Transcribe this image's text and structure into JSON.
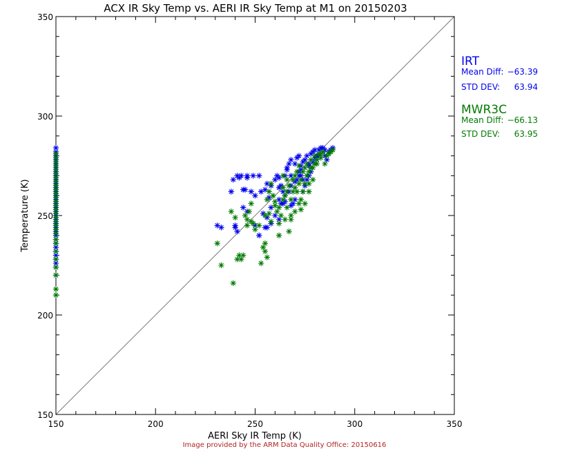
{
  "chart_data": {
    "type": "scatter",
    "title": "ACX IR Sky Temp vs. AERI IR Sky Temp at M1 on 20150203",
    "xlabel": "AERI Sky IR Temp (K)",
    "ylabel": "Temperature (K)",
    "xlim": [
      150,
      350
    ],
    "ylim": [
      150,
      350
    ],
    "xticks": [
      150,
      200,
      250,
      300,
      350
    ],
    "yticks": [
      150,
      200,
      250,
      300,
      350
    ],
    "reference_line": "y = x",
    "grid": false,
    "marker": "asterisk",
    "legend_position": "right",
    "series": [
      {
        "name": "IRT",
        "color": "#0000ee",
        "mean_diff_label": "Mean Diff:",
        "mean_diff": "−63.39",
        "std_dev_label": "STD DEV:",
        "std_dev": "63.94",
        "points": [
          [
            231,
            245
          ],
          [
            233,
            244
          ],
          [
            240,
            244
          ],
          [
            241,
            242
          ],
          [
            241,
            270
          ],
          [
            243,
            270
          ],
          [
            246,
            270
          ],
          [
            249,
            270
          ],
          [
            252,
            270
          ],
          [
            239,
            268
          ],
          [
            242,
            269
          ],
          [
            244,
            263
          ],
          [
            248,
            262
          ],
          [
            250,
            260
          ],
          [
            253,
            262
          ],
          [
            256,
            266
          ],
          [
            254,
            251
          ],
          [
            255,
            244
          ],
          [
            256,
            244
          ],
          [
            256,
            249
          ],
          [
            258,
            265
          ],
          [
            260,
            268
          ],
          [
            261,
            270
          ],
          [
            262,
            269
          ],
          [
            263,
            265
          ],
          [
            264,
            262
          ],
          [
            265,
            260
          ],
          [
            265,
            270
          ],
          [
            266,
            273
          ],
          [
            262,
            258
          ],
          [
            263,
            256
          ],
          [
            264,
            256
          ],
          [
            260,
            250
          ],
          [
            262,
            248
          ],
          [
            258,
            246
          ],
          [
            266,
            262
          ],
          [
            266,
            274
          ],
          [
            267,
            276
          ],
          [
            268,
            278
          ],
          [
            268,
            270
          ],
          [
            268,
            265
          ],
          [
            268,
            255
          ],
          [
            269,
            256
          ],
          [
            270,
            258
          ],
          [
            270,
            276
          ],
          [
            271,
            279
          ],
          [
            272,
            272
          ],
          [
            272,
            280
          ],
          [
            273,
            270
          ],
          [
            273,
            275
          ],
          [
            274,
            277
          ],
          [
            274,
            268
          ],
          [
            274,
            262
          ],
          [
            275,
            278
          ],
          [
            276,
            280
          ],
          [
            276,
            270
          ],
          [
            277,
            276
          ],
          [
            277,
            275
          ],
          [
            278,
            281
          ],
          [
            278,
            272
          ],
          [
            279,
            282
          ],
          [
            280,
            276
          ],
          [
            280,
            283
          ],
          [
            281,
            278
          ],
          [
            282,
            283
          ],
          [
            282,
            280
          ],
          [
            283,
            284
          ],
          [
            284,
            282
          ],
          [
            284,
            284
          ],
          [
            285,
            283
          ],
          [
            285,
            280
          ],
          [
            286,
            278
          ],
          [
            287,
            282
          ],
          [
            288,
            283
          ],
          [
            289,
            284
          ],
          [
            275,
            265
          ],
          [
            276,
            268
          ],
          [
            277,
            270
          ],
          [
            278,
            274
          ],
          [
            279,
            277
          ],
          [
            280,
            279
          ],
          [
            281,
            280
          ],
          [
            270,
            267
          ],
          [
            271,
            268
          ],
          [
            272,
            270
          ],
          [
            273,
            273
          ],
          [
            265,
            257
          ],
          [
            267,
            262
          ],
          [
            246,
            269
          ],
          [
            245,
            263
          ],
          [
            255,
            263
          ],
          [
            257,
            259
          ],
          [
            262,
            264
          ],
          [
            258,
            254
          ],
          [
            244,
            254
          ],
          [
            246,
            252
          ],
          [
            250,
            245
          ],
          [
            252,
            240
          ],
          [
            240,
            245
          ],
          [
            238,
            262
          ],
          [
            150,
            284
          ],
          [
            150,
            282
          ],
          [
            150,
            280
          ],
          [
            150,
            278
          ],
          [
            150,
            276
          ],
          [
            150,
            274
          ],
          [
            150,
            272
          ],
          [
            150,
            270
          ],
          [
            150,
            268
          ],
          [
            150,
            266
          ],
          [
            150,
            264
          ],
          [
            150,
            262
          ],
          [
            150,
            260
          ],
          [
            150,
            258
          ],
          [
            150,
            256
          ],
          [
            150,
            254
          ],
          [
            150,
            252
          ],
          [
            150,
            250
          ],
          [
            150,
            248
          ],
          [
            150,
            246
          ],
          [
            150,
            244
          ],
          [
            150,
            242
          ],
          [
            150,
            240
          ],
          [
            150,
            238
          ],
          [
            150,
            236
          ],
          [
            150,
            234
          ],
          [
            150,
            232
          ],
          [
            150,
            230
          ],
          [
            150,
            228
          ],
          [
            150,
            226
          ],
          [
            150,
            224
          ],
          [
            150,
            220
          ]
        ]
      },
      {
        "name": "MWR3C",
        "color": "#007a00",
        "mean_diff_label": "Mean Diff:",
        "mean_diff": "−66.13",
        "std_dev_label": "STD DEV:",
        "std_dev": "63.95",
        "points": [
          [
            239,
            216
          ],
          [
            241,
            228
          ],
          [
            242,
            230
          ],
          [
            243,
            228
          ],
          [
            244,
            230
          ],
          [
            233,
            225
          ],
          [
            231,
            236
          ],
          [
            238,
            252
          ],
          [
            240,
            249
          ],
          [
            245,
            250
          ],
          [
            246,
            248
          ],
          [
            247,
            252
          ],
          [
            248,
            256
          ],
          [
            249,
            246
          ],
          [
            250,
            243
          ],
          [
            253,
            226
          ],
          [
            254,
            234
          ],
          [
            255,
            232
          ],
          [
            255,
            236
          ],
          [
            256,
            229
          ],
          [
            256,
            258
          ],
          [
            257,
            262
          ],
          [
            258,
            266
          ],
          [
            259,
            260
          ],
          [
            260,
            255
          ],
          [
            261,
            252
          ],
          [
            262,
            240
          ],
          [
            262,
            246
          ],
          [
            263,
            250
          ],
          [
            264,
            258
          ],
          [
            264,
            264
          ],
          [
            265,
            260
          ],
          [
            266,
            254
          ],
          [
            266,
            262
          ],
          [
            267,
            265
          ],
          [
            267,
            242
          ],
          [
            268,
            248
          ],
          [
            268,
            258
          ],
          [
            269,
            262
          ],
          [
            269,
            268
          ],
          [
            270,
            264
          ],
          [
            270,
            270
          ],
          [
            271,
            262
          ],
          [
            271,
            272
          ],
          [
            272,
            266
          ],
          [
            272,
            275
          ],
          [
            273,
            268
          ],
          [
            273,
            258
          ],
          [
            274,
            262
          ],
          [
            274,
            272
          ],
          [
            275,
            266
          ],
          [
            275,
            274
          ],
          [
            276,
            270
          ],
          [
            276,
            276
          ],
          [
            277,
            272
          ],
          [
            277,
            262
          ],
          [
            278,
            274
          ],
          [
            278,
            278
          ],
          [
            279,
            268
          ],
          [
            280,
            276
          ],
          [
            280,
            280
          ],
          [
            281,
            278
          ],
          [
            282,
            281
          ],
          [
            283,
            279
          ],
          [
            284,
            282
          ],
          [
            285,
            276
          ],
          [
            286,
            280
          ],
          [
            287,
            281
          ],
          [
            288,
            282
          ],
          [
            289,
            283
          ],
          [
            270,
            252
          ],
          [
            272,
            256
          ],
          [
            273,
            253
          ],
          [
            268,
            250
          ],
          [
            265,
            248
          ],
          [
            262,
            254
          ],
          [
            260,
            257
          ],
          [
            258,
            247
          ],
          [
            257,
            251
          ],
          [
            255,
            250
          ],
          [
            252,
            245
          ],
          [
            248,
            247
          ],
          [
            246,
            245
          ],
          [
            275,
            256
          ],
          [
            277,
            266
          ],
          [
            279,
            274
          ],
          [
            281,
            276
          ],
          [
            283,
            281
          ],
          [
            266,
            268
          ],
          [
            264,
            270
          ],
          [
            150,
            281
          ],
          [
            150,
            279
          ],
          [
            150,
            277
          ],
          [
            150,
            275
          ],
          [
            150,
            273
          ],
          [
            150,
            271
          ],
          [
            150,
            269
          ],
          [
            150,
            267
          ],
          [
            150,
            265
          ],
          [
            150,
            263
          ],
          [
            150,
            261
          ],
          [
            150,
            259
          ],
          [
            150,
            257
          ],
          [
            150,
            255
          ],
          [
            150,
            253
          ],
          [
            150,
            251
          ],
          [
            150,
            249
          ],
          [
            150,
            247
          ],
          [
            150,
            245
          ],
          [
            150,
            243
          ],
          [
            150,
            241
          ],
          [
            150,
            238
          ],
          [
            150,
            236
          ],
          [
            150,
            232
          ],
          [
            150,
            228
          ],
          [
            150,
            224
          ],
          [
            150,
            220
          ],
          [
            150,
            213
          ],
          [
            150,
            210
          ]
        ]
      }
    ]
  },
  "credit": "Image provided by the ARM Data Quality Office: 20150616",
  "colors": {
    "credit": "#b22222",
    "axis": "#000000",
    "reference_line": "#777777"
  }
}
